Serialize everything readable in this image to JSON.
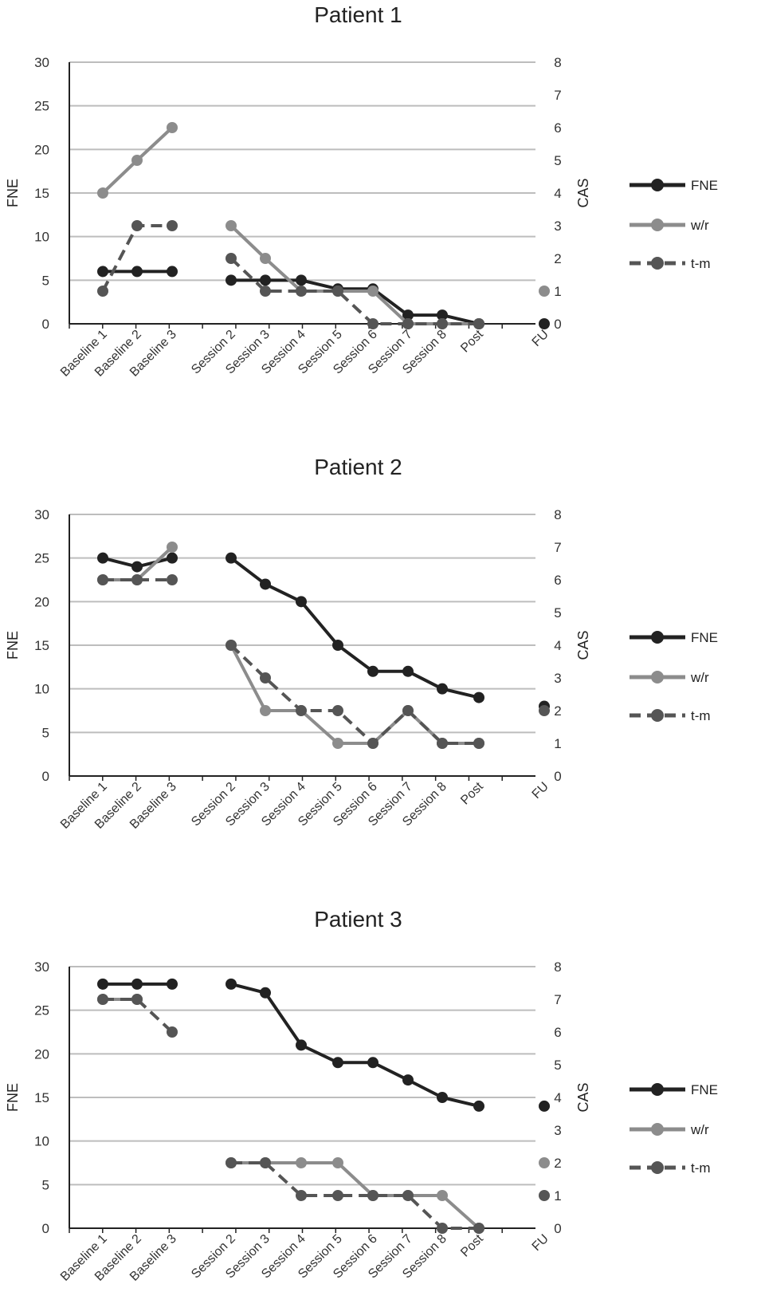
{
  "chart_data": [
    {
      "type": "line",
      "title": "Patient 1",
      "ylabel": "FNE",
      "y2label": "CAS",
      "ylim": [
        0,
        30
      ],
      "y2lim": [
        0,
        8
      ],
      "yticks": [
        "0",
        "5",
        "10",
        "15",
        "20",
        "25",
        "30"
      ],
      "y2ticks": [
        "0",
        "1",
        "2",
        "3",
        "4",
        "5",
        "6",
        "7",
        "8"
      ],
      "categories": [
        "Baseline 1",
        "Baseline 2",
        "Baseline 3",
        "Session 2",
        "Session 3",
        "Session 4",
        "Session 5",
        "Session 6",
        "Session 7",
        "Session 8",
        "Post",
        "FU"
      ],
      "series": [
        {
          "name": "FNE",
          "axis": "left",
          "color": "#222222",
          "dash": false,
          "values": [
            6,
            6,
            6,
            5,
            5,
            5,
            4,
            4,
            1,
            1,
            0,
            0
          ]
        },
        {
          "name": "w/r",
          "axis": "right",
          "color": "#8c8c8c",
          "dash": false,
          "values": [
            4,
            5,
            6,
            3,
            2,
            1,
            1,
            1,
            0,
            0,
            0,
            1
          ]
        },
        {
          "name": "t-m",
          "axis": "right",
          "color": "#555555",
          "dash": true,
          "values": [
            1,
            3,
            3,
            2,
            1,
            1,
            1,
            0,
            0,
            0,
            0,
            null
          ]
        }
      ],
      "legend": [
        "FNE",
        "w/r",
        "t-m"
      ]
    },
    {
      "type": "line",
      "title": "Patient 2",
      "ylabel": "FNE",
      "y2label": "CAS",
      "ylim": [
        0,
        30
      ],
      "y2lim": [
        0,
        8
      ],
      "yticks": [
        "0",
        "5",
        "10",
        "15",
        "20",
        "25",
        "30"
      ],
      "y2ticks": [
        "0",
        "1",
        "2",
        "3",
        "4",
        "5",
        "6",
        "7",
        "8"
      ],
      "categories": [
        "Baseline 1",
        "Baseline 2",
        "Baseline 3",
        "Session 2",
        "Session 3",
        "Session 4",
        "Session 5",
        "Session 6",
        "Session 7",
        "Session 8",
        "Post",
        "FU"
      ],
      "series": [
        {
          "name": "FNE",
          "axis": "left",
          "color": "#222222",
          "dash": false,
          "values": [
            25,
            24,
            25,
            25,
            22,
            20,
            15,
            12,
            12,
            10,
            9,
            8
          ]
        },
        {
          "name": "w/r",
          "axis": "right",
          "color": "#8c8c8c",
          "dash": false,
          "values": [
            6,
            6,
            7,
            4,
            2,
            2,
            1,
            1,
            2,
            1,
            1,
            null
          ]
        },
        {
          "name": "t-m",
          "axis": "right",
          "color": "#555555",
          "dash": true,
          "values": [
            6,
            6,
            6,
            4,
            3,
            2,
            2,
            1,
            2,
            1,
            1,
            2
          ]
        }
      ],
      "legend": [
        "FNE",
        "w/r",
        "t-m"
      ]
    },
    {
      "type": "line",
      "title": "Patient 3",
      "ylabel": "FNE",
      "y2label": "CAS",
      "ylim": [
        0,
        30
      ],
      "y2lim": [
        0,
        8
      ],
      "yticks": [
        "0",
        "5",
        "10",
        "15",
        "20",
        "25",
        "30"
      ],
      "y2ticks": [
        "0",
        "1",
        "2",
        "3",
        "4",
        "5",
        "6",
        "7",
        "8"
      ],
      "categories": [
        "Baseline 1",
        "Baseline 2",
        "Baseline 3",
        "Session 2",
        "Session 3",
        "Session 4",
        "Session 5",
        "Session 6",
        "Session 7",
        "Session 8",
        "Post",
        "FU"
      ],
      "series": [
        {
          "name": "FNE",
          "axis": "left",
          "color": "#222222",
          "dash": false,
          "values": [
            28,
            28,
            28,
            28,
            27,
            21,
            19,
            19,
            17,
            15,
            14,
            14
          ]
        },
        {
          "name": "w/r",
          "axis": "right",
          "color": "#8c8c8c",
          "dash": false,
          "values": [
            7,
            7,
            null,
            2,
            2,
            2,
            2,
            1,
            1,
            1,
            0,
            2
          ]
        },
        {
          "name": "t-m",
          "axis": "right",
          "color": "#555555",
          "dash": true,
          "values": [
            7,
            7,
            6,
            2,
            2,
            1,
            1,
            1,
            1,
            0,
            0,
            1
          ]
        }
      ],
      "legend": [
        "FNE",
        "w/r",
        "t-m"
      ]
    }
  ]
}
